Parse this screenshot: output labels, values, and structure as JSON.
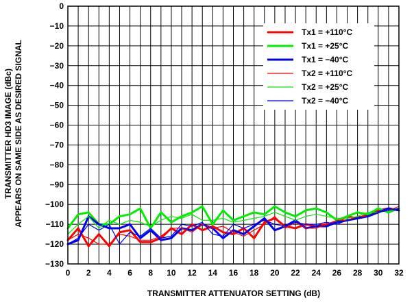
{
  "chart_data": {
    "type": "line",
    "xlabel": "TRANSMITTER ATTENUATOR SETTING (dB)",
    "ylabel_lines": [
      "TRANSMITTER HD3 IMAGE (dBc)",
      "APPEARS ON SAME SIDE AS DESIRED SIGNAL"
    ],
    "xlim": [
      0,
      32
    ],
    "ylim": [
      -130,
      0
    ],
    "x_ticks": [
      "0",
      "2",
      "4",
      "6",
      "8",
      "10",
      "12",
      "14",
      "16",
      "18",
      "20",
      "22",
      "24",
      "26",
      "28",
      "30",
      "32"
    ],
    "y_ticks": [
      "0",
      "−10",
      "−20",
      "−30",
      "−40",
      "−50",
      "−60",
      "−70",
      "−80",
      "−90",
      "−100",
      "−110",
      "−120",
      "−130"
    ],
    "x_grid_step": 1,
    "y_grid_step": 10,
    "grid": true,
    "legend_position": "top-right",
    "x": [
      0,
      1,
      2,
      3,
      4,
      5,
      6,
      7,
      8,
      9,
      10,
      11,
      12,
      13,
      14,
      15,
      16,
      17,
      18,
      19,
      20,
      21,
      22,
      23,
      24,
      25,
      26,
      27,
      28,
      29,
      30,
      31,
      32
    ],
    "series": [
      {
        "name": "Tx1 = +110°C",
        "color": "#ff0000",
        "width": 3,
        "values": [
          -118,
          -112,
          -121,
          -115,
          -121,
          -114,
          -113,
          -119,
          -119,
          -117,
          -112,
          -115,
          -110,
          -113,
          -111,
          -114,
          -115,
          -112,
          -117,
          -109,
          -107,
          -111,
          -112,
          -110,
          -111,
          -110,
          -109,
          -106,
          -107,
          -105,
          -103,
          -102,
          -103
        ]
      },
      {
        "name": "Tx1 = +25°C",
        "color": "#00ee00",
        "width": 3,
        "values": [
          -112,
          -105,
          -104,
          -110,
          -110,
          -106,
          -105,
          -102,
          -112,
          -104,
          -109,
          -106,
          -104,
          -101,
          -110,
          -103,
          -108,
          -106,
          -104,
          -105,
          -101,
          -104,
          -106,
          -103,
          -102,
          -104,
          -108,
          -106,
          -104,
          -105,
          -102,
          -104,
          -102
        ]
      },
      {
        "name": "Tx1 = −40°C",
        "color": "#0000ee",
        "width": 3,
        "values": [
          -120,
          -118,
          -106,
          -110,
          -112,
          -112,
          -110,
          -117,
          -113,
          -118,
          -117,
          -112,
          -113,
          -110,
          -112,
          -117,
          -113,
          -115,
          -111,
          -107,
          -113,
          -111,
          -108,
          -112,
          -111,
          -111,
          -109,
          -108,
          -107,
          -106,
          -104,
          -102,
          -103
        ]
      },
      {
        "name": "Tx2 = +110°C",
        "color": "#ff0000",
        "width": 1.2,
        "values": [
          -118,
          -115,
          -117,
          -120,
          -120,
          -115,
          -116,
          -118,
          -118,
          -116,
          -112,
          -112,
          -114,
          -110,
          -112,
          -111,
          -114,
          -116,
          -113,
          -110,
          -106,
          -112,
          -109,
          -112,
          -112,
          -110,
          -108,
          -108,
          -106,
          -106,
          -104,
          -103,
          -101
        ]
      },
      {
        "name": "Tx2 = +25°C",
        "color": "#00ee00",
        "width": 1.2,
        "values": [
          -115,
          -110,
          -106,
          -112,
          -108,
          -110,
          -108,
          -109,
          -111,
          -108,
          -106,
          -107,
          -105,
          -108,
          -108,
          -107,
          -109,
          -108,
          -107,
          -106,
          -104,
          -106,
          -108,
          -106,
          -105,
          -106,
          -107,
          -107,
          -106,
          -104,
          -104,
          -103,
          -102
        ]
      },
      {
        "name": "Tx2 = −40°C",
        "color": "#0000ee",
        "width": 1.2,
        "values": [
          -120,
          -117,
          -110,
          -113,
          -110,
          -120,
          -114,
          -116,
          -112,
          -117,
          -116,
          -110,
          -111,
          -109,
          -115,
          -116,
          -110,
          -112,
          -110,
          -108,
          -110,
          -111,
          -109,
          -110,
          -110,
          -109,
          -110,
          -108,
          -107,
          -106,
          -104,
          -103,
          -102
        ]
      }
    ]
  }
}
